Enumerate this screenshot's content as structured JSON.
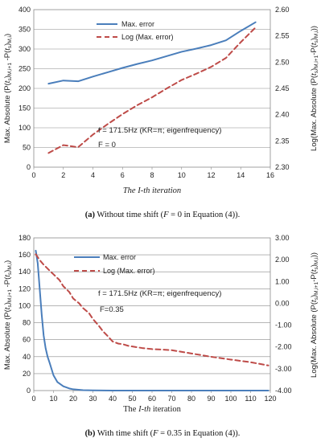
{
  "chart_data": [
    {
      "type": "line",
      "xlabel": "The I-th iteration",
      "ylabel_left": "Max. Absolute (P(t_s)_{M,i+1} - P(t_s)_{M,i})",
      "ylabel_right": "Log(Max. Absolute (P(t_s)_{M,i+1} - P(t_s)_{M,i}))",
      "xlim": [
        0,
        16
      ],
      "ylim_left": [
        0,
        400
      ],
      "ylim_right": [
        2.3,
        2.6
      ],
      "x_ticks": [
        "0",
        "2",
        "4",
        "6",
        "8",
        "10",
        "12",
        "14",
        "16"
      ],
      "y_ticks_left": [
        "0",
        "50",
        "100",
        "150",
        "200",
        "250",
        "300",
        "350",
        "400"
      ],
      "y_ticks_right": [
        "2.30",
        "2.35",
        "2.40",
        "2.45",
        "2.50",
        "2.55",
        "2.60"
      ],
      "legend": [
        "Max. error",
        "Log (Max. error)"
      ],
      "annotation": [
        "f = 171.5Hz (KR=π; eigenfrequency)",
        "F = 0"
      ],
      "caption_label": "(a)",
      "caption_text": "Without time shift (F = 0 in Equation (4)).",
      "series": [
        {
          "name": "Max. error",
          "axis": "left",
          "color": "#4a7ebb",
          "x": [
            1,
            2,
            3,
            4,
            5,
            6,
            7,
            8,
            9,
            10,
            11,
            12,
            13,
            14,
            15
          ],
          "values": [
            212,
            220,
            218,
            230,
            241,
            252,
            262,
            271,
            282,
            293,
            301,
            310,
            322,
            346,
            368
          ]
        },
        {
          "name": "Log (Max. error)",
          "axis": "right",
          "color": "#be4b48",
          "x": [
            1,
            2,
            3,
            4,
            5,
            6,
            7,
            8,
            9,
            10,
            11,
            12,
            13,
            14,
            15
          ],
          "values": [
            2.327,
            2.342,
            2.338,
            2.362,
            2.382,
            2.401,
            2.418,
            2.433,
            2.45,
            2.466,
            2.478,
            2.491,
            2.508,
            2.538,
            2.566
          ]
        }
      ]
    },
    {
      "type": "line",
      "xlabel": "The I-th iteration",
      "ylabel_left": "Max. Absolute (P(t_s)_{M,i+1} - P(t_s)_{M,i})",
      "ylabel_right": "Log(Max. Absolute (P(t_s)_{M,i+1} - P(t_s)_{M,i}))",
      "xlim": [
        0,
        120
      ],
      "ylim_left": [
        0,
        180
      ],
      "ylim_right": [
        -4.0,
        3.0
      ],
      "x_ticks": [
        "0",
        "10",
        "20",
        "30",
        "40",
        "50",
        "60",
        "70",
        "80",
        "90",
        "100",
        "110",
        "120"
      ],
      "y_ticks_left": [
        "0",
        "20",
        "40",
        "60",
        "80",
        "100",
        "120",
        "140",
        "160",
        "180"
      ],
      "y_ticks_right": [
        "-4.00",
        "-3.00",
        "-2.00",
        "-1.00",
        "0.00",
        "1.00",
        "2.00",
        "3.00"
      ],
      "legend": [
        "Max. error",
        "Log (Max. error)"
      ],
      "annotation": [
        "f = 171.5Hz (KR=π; eigenfrequency)",
        "F=0.35"
      ],
      "caption_label": "(b)",
      "caption_text": "With time shift (F = 0.35 in Equation (4)).",
      "series": [
        {
          "name": "Max. error",
          "axis": "left",
          "color": "#4a7ebb",
          "x": [
            1,
            2,
            3,
            4,
            5,
            6,
            7,
            8,
            10,
            12,
            15,
            18,
            20,
            25,
            30,
            40,
            60,
            80,
            100,
            119
          ],
          "values": [
            165,
            150,
            120,
            90,
            65,
            50,
            40,
            33,
            18,
            10,
            5,
            2.5,
            1.5,
            0.5,
            0.2,
            0.05,
            0,
            0,
            0,
            0
          ]
        },
        {
          "name": "Log (Max. error)",
          "axis": "right",
          "color": "#be4b48",
          "x": [
            1,
            3,
            5,
            8,
            10,
            13,
            15,
            18,
            20,
            23,
            25,
            28,
            30,
            33,
            35,
            38,
            40,
            43,
            45,
            48,
            50,
            55,
            60,
            65,
            70,
            80,
            90,
            100,
            110,
            119
          ],
          "values": [
            2.25,
            1.98,
            1.77,
            1.5,
            1.33,
            1.07,
            0.78,
            0.52,
            0.22,
            0.0,
            -0.22,
            -0.45,
            -0.72,
            -1.03,
            -1.27,
            -1.55,
            -1.75,
            -1.85,
            -1.87,
            -1.95,
            -1.98,
            -2.05,
            -2.1,
            -2.12,
            -2.15,
            -2.3,
            -2.45,
            -2.58,
            -2.7,
            -2.85
          ]
        }
      ]
    }
  ]
}
